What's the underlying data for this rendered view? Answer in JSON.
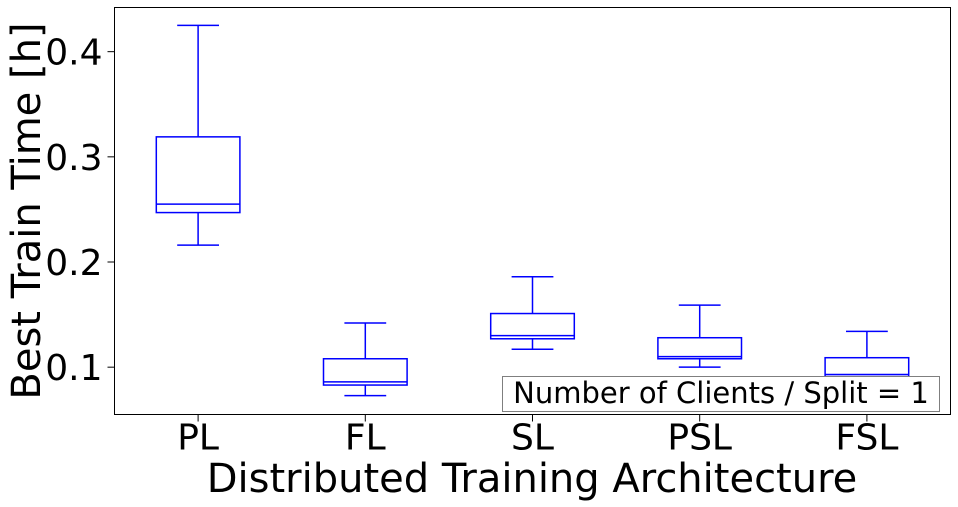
{
  "chart_data": {
    "type": "box",
    "xlabel": "Distributed Training Architecture",
    "ylabel": "Best Train Time [h]",
    "categories": [
      "PL",
      "FL",
      "SL",
      "PSL",
      "FSL"
    ],
    "boxes": [
      {
        "category": "PL",
        "whislo": 0.216,
        "q1": 0.247,
        "med": 0.255,
        "q3": 0.319,
        "whishi": 0.425
      },
      {
        "category": "FL",
        "whislo": 0.073,
        "q1": 0.083,
        "med": 0.086,
        "q3": 0.108,
        "whishi": 0.142
      },
      {
        "category": "SL",
        "whislo": 0.117,
        "q1": 0.127,
        "med": 0.13,
        "q3": 0.151,
        "whishi": 0.186
      },
      {
        "category": "PSL",
        "whislo": 0.1,
        "q1": 0.108,
        "med": 0.11,
        "q3": 0.128,
        "whishi": 0.159
      },
      {
        "category": "FSL",
        "whislo": 0.084,
        "q1": 0.091,
        "med": 0.093,
        "q3": 0.109,
        "whishi": 0.134
      }
    ],
    "ylim": [
      0.055,
      0.442
    ],
    "yticks": [
      0.1,
      0.2,
      0.3,
      0.4
    ],
    "ytick_labels": [
      "0.1",
      "0.2",
      "0.3",
      "0.4"
    ],
    "annotation": "Number of Clients / Split = 1",
    "grid": false,
    "box_color": "#0000ff"
  }
}
